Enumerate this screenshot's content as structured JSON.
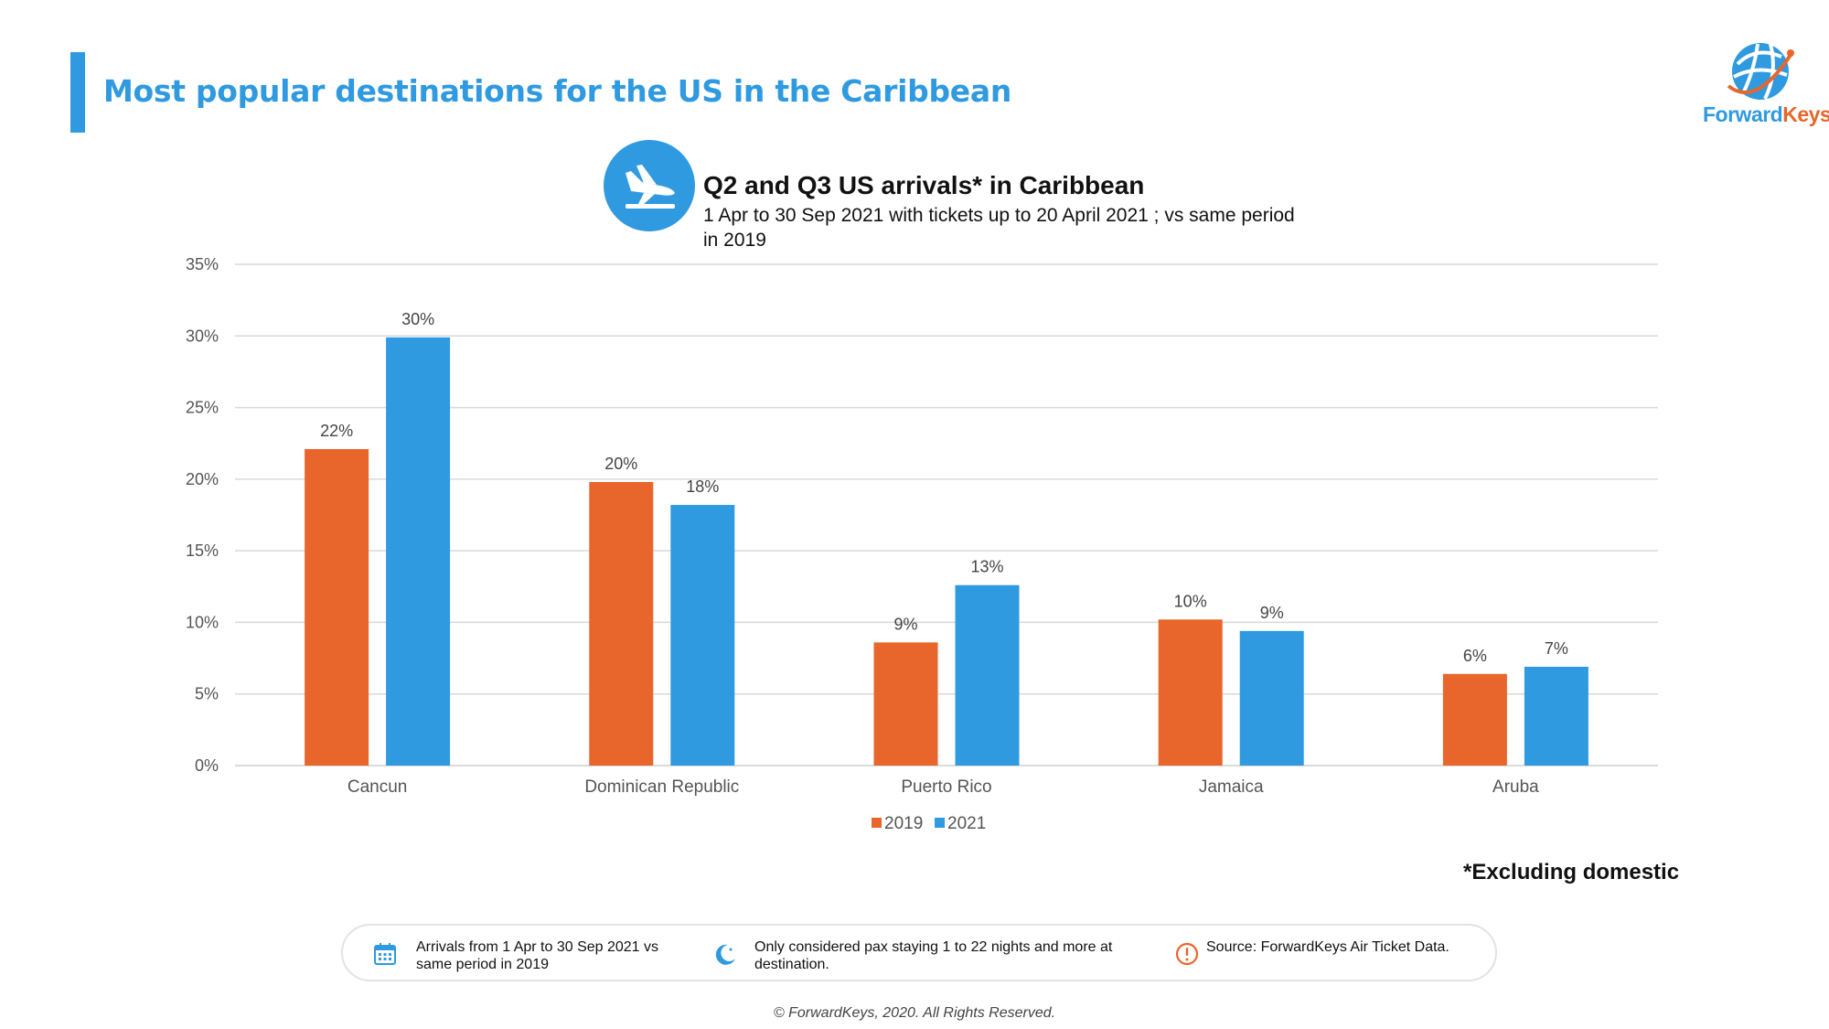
{
  "header": {
    "title": "Most popular destinations for the US in the Caribbean"
  },
  "logo": {
    "text_a": "Forward",
    "text_b": "Keys",
    "icon": "globe-logo-icon"
  },
  "colors": {
    "accent": "#2f9ae0",
    "series_2019": "#e8662b",
    "series_2021": "#2f9ae0",
    "grid": "#d9d9d9"
  },
  "chart_data": {
    "type": "bar",
    "title": "Q2 and Q3 US arrivals* in Caribbean",
    "subtitle": "1 Apr to 30 Sep 2021 with tickets up to 20 April 2021 ; vs same period in 2019",
    "categories": [
      "Cancun",
      "Dominican Republic",
      "Puerto Rico",
      "Jamaica",
      "Aruba"
    ],
    "series": [
      {
        "name": "2019",
        "values": [
          22,
          20,
          9,
          10,
          6
        ],
        "labels": [
          "22%",
          "20%",
          "9%",
          "10%",
          "6%"
        ]
      },
      {
        "name": "2021",
        "values": [
          30,
          18,
          13,
          9,
          7
        ],
        "labels": [
          "30%",
          "18%",
          "13%",
          "9%",
          "7%"
        ]
      }
    ],
    "plotted_values": [
      [
        22.1,
        19.8,
        8.6,
        10.2,
        6.4
      ],
      [
        29.9,
        18.2,
        12.6,
        9.4,
        6.9
      ]
    ],
    "yticks": [
      "0%",
      "5%",
      "10%",
      "15%",
      "20%",
      "25%",
      "30%",
      "35%"
    ],
    "ylim": [
      0,
      35
    ],
    "grid": true,
    "legend": "bottom-center"
  },
  "footnote": "*Excluding domestic",
  "info": [
    {
      "icon": "calendar-icon",
      "text": "Arrivals from 1 Apr to 30 Sep 2021 vs same period in 2019"
    },
    {
      "icon": "moon-icon",
      "text": "Only considered pax staying 1 to 22 nights and more at destination."
    },
    {
      "icon": "alert-icon",
      "text": "Source: ForwardKeys Air Ticket Data."
    }
  ],
  "copyright": "© ForwardKeys, 2020. All Rights Reserved."
}
